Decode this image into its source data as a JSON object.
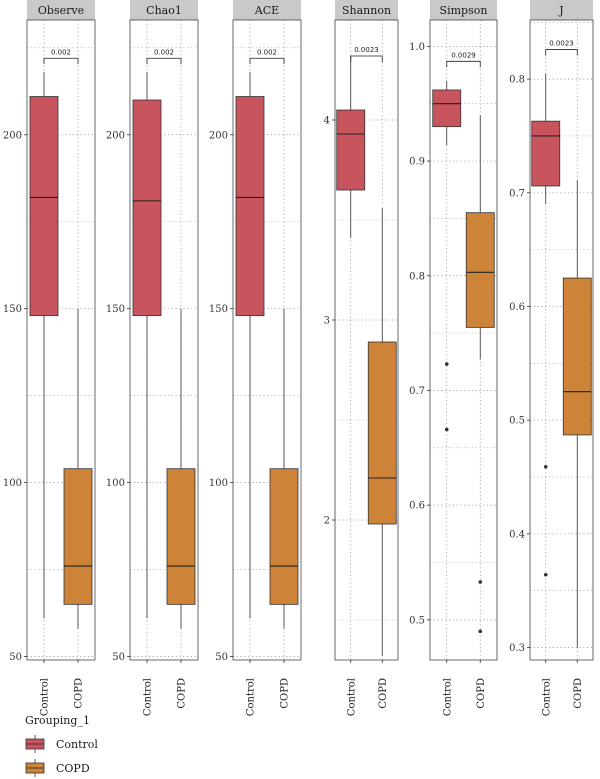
{
  "chart_data": {
    "type": "boxplot",
    "categories": [
      "Control",
      "COPD"
    ],
    "colors": {
      "Control": "#c8545d",
      "COPD": "#cd8438"
    },
    "legend": {
      "title": "Grouping_1",
      "placement": "bottom-left",
      "entries": [
        {
          "label": "Control",
          "color": "#c8545d"
        },
        {
          "label": "COPD",
          "color": "#cd8438"
        }
      ]
    },
    "panels": [
      {
        "title": "Observe",
        "ylim": [
          49,
          233
        ],
        "ticks": [
          50,
          100,
          150,
          200
        ],
        "tick_labels": [
          "50",
          "100",
          "150",
          "200"
        ],
        "p_value": "0.002",
        "bracket_y": 222,
        "boxes": [
          {
            "group": "Control",
            "whisker_low": 61,
            "q1": 148,
            "median": 182,
            "q3": 211,
            "whisker_high": 218,
            "outliers": []
          },
          {
            "group": "COPD",
            "whisker_low": 58,
            "q1": 65,
            "median": 76,
            "q3": 104,
            "whisker_high": 150,
            "outliers": []
          }
        ]
      },
      {
        "title": "Chao1",
        "ylim": [
          49,
          233
        ],
        "ticks": [
          50,
          100,
          150,
          200
        ],
        "tick_labels": [
          "50",
          "100",
          "150",
          "200"
        ],
        "p_value": "0.002",
        "bracket_y": 222,
        "boxes": [
          {
            "group": "Control",
            "whisker_low": 61,
            "q1": 148,
            "median": 181,
            "q3": 210,
            "whisker_high": 218,
            "outliers": []
          },
          {
            "group": "COPD",
            "whisker_low": 58,
            "q1": 65,
            "median": 76,
            "q3": 104,
            "whisker_high": 150,
            "outliers": []
          }
        ]
      },
      {
        "title": "ACE",
        "ylim": [
          49,
          233
        ],
        "ticks": [
          50,
          100,
          150,
          200
        ],
        "tick_labels": [
          "50",
          "100",
          "150",
          "200"
        ],
        "p_value": "0.002",
        "bracket_y": 222,
        "boxes": [
          {
            "group": "Control",
            "whisker_low": 61,
            "q1": 148,
            "median": 182,
            "q3": 211,
            "whisker_high": 218,
            "outliers": []
          },
          {
            "group": "COPD",
            "whisker_low": 58,
            "q1": 65,
            "median": 76,
            "q3": 104,
            "whisker_high": 150,
            "outliers": []
          }
        ]
      },
      {
        "title": "Shannon",
        "ylim": [
          1.3,
          4.5
        ],
        "ticks": [
          2,
          3,
          4
        ],
        "tick_labels": [
          "2",
          "3",
          "4"
        ],
        "p_value": "0.0023",
        "bracket_y": 4.32,
        "boxes": [
          {
            "group": "Control",
            "whisker_low": 3.41,
            "q1": 3.65,
            "median": 3.93,
            "q3": 4.05,
            "whisker_high": 4.32,
            "outliers": []
          },
          {
            "group": "COPD",
            "whisker_low": 1.32,
            "q1": 1.98,
            "median": 2.21,
            "q3": 2.89,
            "whisker_high": 3.56,
            "outliers": []
          }
        ]
      },
      {
        "title": "Simpson",
        "ylim": [
          0.465,
          1.023
        ],
        "ticks": [
          0.5,
          0.6,
          0.7,
          0.8,
          0.9,
          1.0
        ],
        "tick_labels": [
          "0.5",
          "0.6",
          "0.7",
          "0.8",
          "0.9",
          "1.0"
        ],
        "p_value": "0.0029",
        "bracket_y": 0.987,
        "boxes": [
          {
            "group": "Control",
            "whisker_low": 0.914,
            "q1": 0.93,
            "median": 0.95,
            "q3": 0.962,
            "whisker_high": 0.97,
            "outliers": [
              0.723,
              0.666
            ]
          },
          {
            "group": "COPD",
            "whisker_low": 0.727,
            "q1": 0.755,
            "median": 0.803,
            "q3": 0.855,
            "whisker_high": 0.94,
            "outliers": [
              0.533,
              0.49
            ]
          }
        ]
      },
      {
        "title": "J",
        "ylim": [
          0.289,
          0.852
        ],
        "ticks": [
          0.3,
          0.4,
          0.5,
          0.6,
          0.7,
          0.8
        ],
        "tick_labels": [
          "0.3",
          "0.4",
          "0.5",
          "0.6",
          "0.7",
          "0.8"
        ],
        "p_value": "0.0023",
        "bracket_y": 0.826,
        "boxes": [
          {
            "group": "Control",
            "whisker_low": 0.69,
            "q1": 0.706,
            "median": 0.75,
            "q3": 0.763,
            "whisker_high": 0.805,
            "outliers": [
              0.459,
              0.364
            ]
          },
          {
            "group": "COPD",
            "whisker_low": 0.3,
            "q1": 0.487,
            "median": 0.525,
            "q3": 0.625,
            "whisker_high": 0.711,
            "outliers": []
          }
        ]
      }
    ]
  }
}
